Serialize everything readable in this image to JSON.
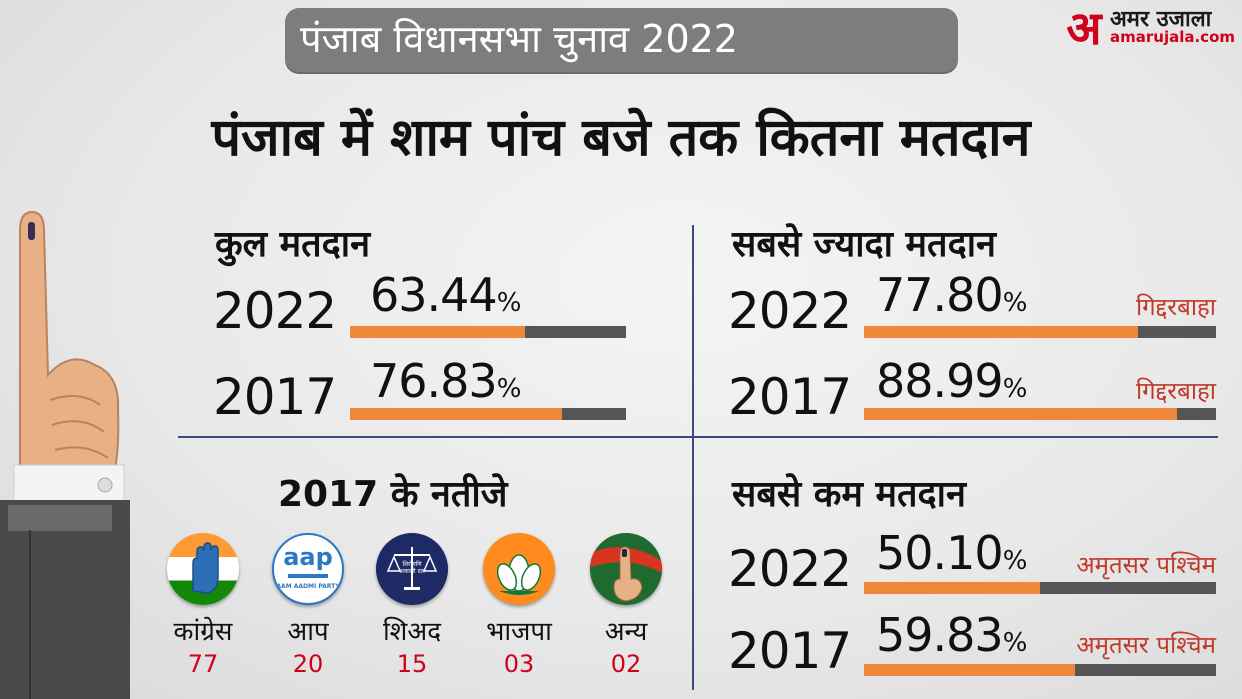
{
  "header": {
    "pill_title": "पंजाब विधानसभा चुनाव 2022",
    "headline": "पंजाब में शाम पांच बजे तक कितना मतदान"
  },
  "logo": {
    "mark": "अ",
    "name": "अमर उजाला",
    "url": "amarujala.com"
  },
  "total": {
    "title": "कुल मतदान",
    "rows": [
      {
        "year": "2022",
        "value": "63.44",
        "unit": "%",
        "fraction": 0.6344
      },
      {
        "year": "2017",
        "value": "76.83",
        "unit": "%",
        "fraction": 0.7683
      }
    ]
  },
  "highest": {
    "title": "सबसे ज्यादा मतदान",
    "rows": [
      {
        "year": "2022",
        "value": "77.80",
        "unit": "%",
        "place": "गिद्दरबाहा",
        "fraction": 0.778
      },
      {
        "year": "2017",
        "value": "88.99",
        "unit": "%",
        "place": "गिद्दरबाहा",
        "fraction": 0.8899
      }
    ]
  },
  "lowest": {
    "title": "सबसे कम मतदान",
    "rows": [
      {
        "year": "2022",
        "value": "50.10",
        "unit": "%",
        "place": "अमृतसर पश्चिम",
        "fraction": 0.501
      },
      {
        "year": "2017",
        "value": "59.83",
        "unit": "%",
        "place": "अमृतसर पश्चिम",
        "fraction": 0.5983
      }
    ]
  },
  "results": {
    "title": "2017 के नतीजे",
    "parties": [
      {
        "name": "कांग्रेस",
        "seats": "77",
        "icon": "hand-icon"
      },
      {
        "name": "आप",
        "seats": "20",
        "icon": "aap-logo",
        "logo_text": "aap",
        "logo_sub": "AAM AADMI PARTY"
      },
      {
        "name": "शिअद",
        "seats": "15",
        "icon": "scales-icon",
        "logo_text": "शिरोमणि अकाली दल"
      },
      {
        "name": "भाजपा",
        "seats": "03",
        "icon": "lotus-icon"
      },
      {
        "name": "अन्य",
        "seats": "02",
        "icon": "finger-icon"
      }
    ]
  },
  "colors": {
    "accent_orange": "#f0883a",
    "bar_dark": "#555555",
    "brand_red": "#d0021b",
    "divider": "#3b4a80"
  }
}
